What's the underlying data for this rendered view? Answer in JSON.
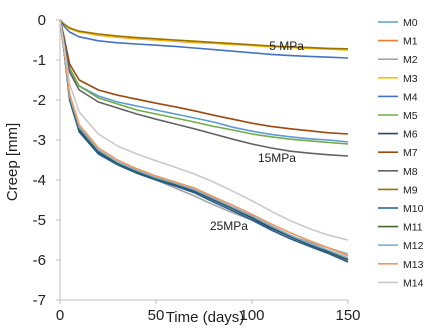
{
  "chart_data": {
    "type": "line",
    "title": "",
    "xlabel": "Time (days)",
    "ylabel": "Creep [mm]",
    "xlim": [
      0,
      150
    ],
    "ylim": [
      -7,
      0
    ],
    "xticks": [
      0,
      50,
      100,
      150
    ],
    "yticks": [
      0,
      -1,
      -2,
      -3,
      -4,
      -5,
      -6,
      -7
    ],
    "grid": false,
    "legend_position": "right",
    "annotations": [
      {
        "text": "5 MPa",
        "x": 118,
        "y": -0.75
      },
      {
        "text": "15MPa",
        "x": 113,
        "y": -3.55
      },
      {
        "text": "25MPa",
        "x": 88,
        "y": -5.25
      }
    ],
    "series": [
      {
        "name": "M0",
        "color": "#5b9bd5",
        "x": [
          0,
          2,
          5,
          10,
          20,
          30,
          40,
          50,
          60,
          70,
          80,
          90,
          100,
          110,
          120,
          130,
          140,
          150
        ],
        "y": [
          0,
          -0.4,
          -1.25,
          -1.65,
          -1.9,
          -2.05,
          -2.15,
          -2.25,
          -2.35,
          -2.45,
          -2.55,
          -2.68,
          -2.78,
          -2.86,
          -2.92,
          -2.97,
          -3.0,
          -3.05
        ]
      },
      {
        "name": "M1",
        "color": "#ed7d31",
        "x": [
          0,
          2,
          5,
          10,
          20,
          30,
          40,
          50,
          60,
          70,
          80,
          90,
          100,
          110,
          120,
          130,
          140,
          150
        ],
        "y": [
          0,
          -0.1,
          -0.2,
          -0.3,
          -0.38,
          -0.43,
          -0.47,
          -0.5,
          -0.53,
          -0.56,
          -0.58,
          -0.61,
          -0.63,
          -0.66,
          -0.68,
          -0.7,
          -0.72,
          -0.73
        ]
      },
      {
        "name": "M2",
        "color": "#a5a5a5",
        "x": [
          0,
          2,
          5,
          10,
          20,
          30,
          40,
          50,
          60,
          70,
          80,
          90,
          100,
          110,
          120,
          130,
          140,
          150
        ],
        "y": [
          0,
          -0.7,
          -1.9,
          -2.7,
          -3.3,
          -3.6,
          -3.82,
          -4.0,
          -4.2,
          -4.4,
          -4.62,
          -4.82,
          -5.0,
          -5.2,
          -5.4,
          -5.55,
          -5.7,
          -5.85
        ]
      },
      {
        "name": "M3",
        "color": "#ffc000",
        "x": [
          0,
          2,
          5,
          10,
          20,
          30,
          40,
          50,
          60,
          70,
          80,
          90,
          100,
          110,
          120,
          130,
          140,
          150
        ],
        "y": [
          0,
          -0.1,
          -0.22,
          -0.3,
          -0.37,
          -0.42,
          -0.46,
          -0.49,
          -0.52,
          -0.55,
          -0.58,
          -0.61,
          -0.64,
          -0.67,
          -0.69,
          -0.71,
          -0.73,
          -0.75
        ]
      },
      {
        "name": "M4",
        "color": "#4472c4",
        "x": [
          0,
          2,
          5,
          10,
          20,
          30,
          40,
          50,
          60,
          70,
          80,
          90,
          100,
          110,
          120,
          130,
          140,
          150
        ],
        "y": [
          0,
          -0.15,
          -0.3,
          -0.42,
          -0.52,
          -0.57,
          -0.6,
          -0.63,
          -0.66,
          -0.7,
          -0.74,
          -0.78,
          -0.82,
          -0.86,
          -0.89,
          -0.91,
          -0.93,
          -0.95
        ]
      },
      {
        "name": "M5",
        "color": "#70ad47",
        "x": [
          0,
          2,
          5,
          10,
          20,
          30,
          40,
          50,
          60,
          70,
          80,
          90,
          100,
          110,
          120,
          130,
          140,
          150
        ],
        "y": [
          0,
          -0.42,
          -1.2,
          -1.65,
          -1.95,
          -2.1,
          -2.25,
          -2.35,
          -2.45,
          -2.55,
          -2.66,
          -2.75,
          -2.85,
          -2.92,
          -2.98,
          -3.02,
          -3.06,
          -3.1
        ]
      },
      {
        "name": "M6",
        "color": "#264478",
        "x": [
          0,
          2,
          5,
          10,
          20,
          30,
          40,
          50,
          60,
          70,
          80,
          90,
          100,
          110,
          120,
          130,
          140,
          150
        ],
        "y": [
          0,
          -0.7,
          -1.95,
          -2.75,
          -3.3,
          -3.58,
          -3.8,
          -3.98,
          -4.12,
          -4.28,
          -4.5,
          -4.72,
          -4.95,
          -5.2,
          -5.42,
          -5.62,
          -5.8,
          -6.0
        ]
      },
      {
        "name": "M7",
        "color": "#9e480e",
        "x": [
          0,
          2,
          5,
          10,
          20,
          30,
          40,
          50,
          60,
          70,
          80,
          90,
          100,
          110,
          120,
          130,
          140,
          150
        ],
        "y": [
          0,
          -0.4,
          -1.1,
          -1.5,
          -1.75,
          -1.88,
          -1.98,
          -2.08,
          -2.17,
          -2.27,
          -2.38,
          -2.48,
          -2.58,
          -2.66,
          -2.72,
          -2.77,
          -2.82,
          -2.85
        ]
      },
      {
        "name": "M8",
        "color": "#636363",
        "x": [
          0,
          2,
          5,
          10,
          20,
          30,
          40,
          50,
          60,
          70,
          80,
          90,
          100,
          110,
          120,
          130,
          140,
          150
        ],
        "y": [
          0,
          -0.45,
          -1.3,
          -1.75,
          -2.05,
          -2.2,
          -2.35,
          -2.48,
          -2.6,
          -2.72,
          -2.85,
          -2.98,
          -3.1,
          -3.2,
          -3.28,
          -3.33,
          -3.37,
          -3.4
        ]
      },
      {
        "name": "M9",
        "color": "#997300",
        "x": [
          0,
          2,
          5,
          10,
          20,
          30,
          40,
          50,
          60,
          70,
          80,
          90,
          100,
          110,
          120,
          130,
          140,
          150
        ],
        "y": [
          0,
          -0.1,
          -0.2,
          -0.28,
          -0.35,
          -0.4,
          -0.44,
          -0.47,
          -0.5,
          -0.53,
          -0.56,
          -0.59,
          -0.62,
          -0.65,
          -0.67,
          -0.69,
          -0.71,
          -0.72
        ]
      },
      {
        "name": "M10",
        "color": "#255e91",
        "x": [
          0,
          2,
          5,
          10,
          20,
          30,
          40,
          50,
          60,
          70,
          80,
          90,
          100,
          110,
          120,
          130,
          140,
          150
        ],
        "y": [
          0,
          -0.72,
          -2.0,
          -2.8,
          -3.35,
          -3.62,
          -3.83,
          -4.0,
          -4.15,
          -4.32,
          -4.55,
          -4.77,
          -5.0,
          -5.25,
          -5.47,
          -5.66,
          -5.84,
          -6.05
        ]
      },
      {
        "name": "M11",
        "color": "#43682b",
        "x": [
          0,
          2,
          5,
          10,
          20,
          30,
          40,
          50,
          60,
          70,
          80,
          90,
          100,
          110,
          120,
          130,
          140,
          150
        ],
        "y": [
          0,
          -0.7,
          -1.92,
          -2.72,
          -3.28,
          -3.57,
          -3.78,
          -3.96,
          -4.1,
          -4.26,
          -4.48,
          -4.7,
          -4.92,
          -5.17,
          -5.4,
          -5.6,
          -5.78,
          -5.98
        ]
      },
      {
        "name": "M12",
        "color": "#7cafdd",
        "x": [
          0,
          2,
          5,
          10,
          20,
          30,
          40,
          50,
          60,
          70,
          80,
          90,
          100,
          110,
          120,
          130,
          140,
          150
        ],
        "y": [
          0,
          -0.68,
          -1.9,
          -2.68,
          -3.25,
          -3.55,
          -3.76,
          -3.94,
          -4.08,
          -4.24,
          -4.46,
          -4.68,
          -4.9,
          -5.15,
          -5.38,
          -5.58,
          -5.76,
          -5.95
        ]
      },
      {
        "name": "M13",
        "color": "#f1975a",
        "x": [
          0,
          2,
          5,
          10,
          20,
          30,
          40,
          50,
          60,
          70,
          80,
          90,
          100,
          110,
          120,
          130,
          140,
          150
        ],
        "y": [
          0,
          -0.66,
          -1.85,
          -2.62,
          -3.2,
          -3.5,
          -3.72,
          -3.9,
          -4.05,
          -4.2,
          -4.42,
          -4.63,
          -4.86,
          -5.1,
          -5.32,
          -5.52,
          -5.7,
          -5.9
        ]
      },
      {
        "name": "M14",
        "color": "#c9c9c9",
        "x": [
          0,
          2,
          5,
          10,
          20,
          30,
          40,
          50,
          60,
          70,
          80,
          90,
          100,
          110,
          120,
          130,
          140,
          150
        ],
        "y": [
          0,
          -0.6,
          -1.6,
          -2.3,
          -2.85,
          -3.15,
          -3.35,
          -3.52,
          -3.68,
          -3.85,
          -4.05,
          -4.28,
          -4.52,
          -4.78,
          -5.02,
          -5.22,
          -5.38,
          -5.5
        ]
      }
    ]
  }
}
